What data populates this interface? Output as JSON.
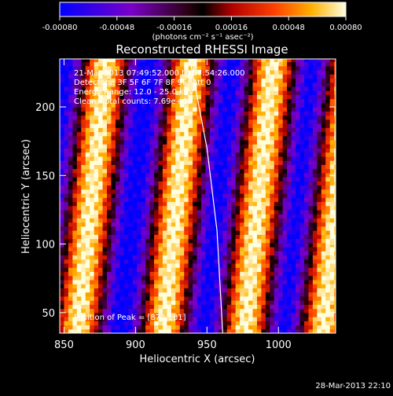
{
  "chart_data": {
    "type": "heatmap",
    "title": "Reconstructed RHESSI Image",
    "xlabel": "Heliocentric X (arcsec)",
    "ylabel": "Heliocentric Y (arcsec)",
    "xlim": [
      847,
      1040
    ],
    "ylim": [
      35,
      235
    ],
    "x_ticks": [
      "850",
      "900",
      "950",
      "1000"
    ],
    "x_tick_values": [
      850,
      900,
      950,
      1000
    ],
    "y_ticks": [
      "50",
      "100",
      "150",
      "200"
    ],
    "y_tick_values": [
      50,
      100,
      150,
      200
    ],
    "colorbar": {
      "label": "(photons cm⁻² s⁻¹ asec⁻²)",
      "range": [
        -0.0008,
        0.0008
      ],
      "ticks": [
        "-0.00080",
        "-0.00048",
        "-0.00016",
        "0.00016",
        "0.00048",
        "0.00080"
      ],
      "tick_values": [
        -0.0008,
        -0.00048,
        -0.00016,
        0.00016,
        0.00048,
        0.0008
      ]
    },
    "annotations": [
      "21-Mar-2013 07:49:52.000 to 07:54:26.000",
      "Detectors: 3F 5F 6F 7F 8F 9F; Att 0",
      "Energy Range: 12.0 - 25.0 keV",
      "Clean. Total counts: 7.69e+03"
    ],
    "peak_label": "Position of Peak = [872,181]",
    "peak_position": [
      872,
      181
    ],
    "limb_curve": [
      [
        938,
        235
      ],
      [
        950,
        170
      ],
      [
        957,
        110
      ],
      [
        961,
        35
      ]
    ],
    "stripe_ridges_x_at_y35": [
      858,
      918,
      975,
      1030
    ],
    "stripe_tilt_arcsec_per_arcsec_y": -0.1
  },
  "footer": {
    "timestamp": "28-Mar-2013 22:10"
  }
}
